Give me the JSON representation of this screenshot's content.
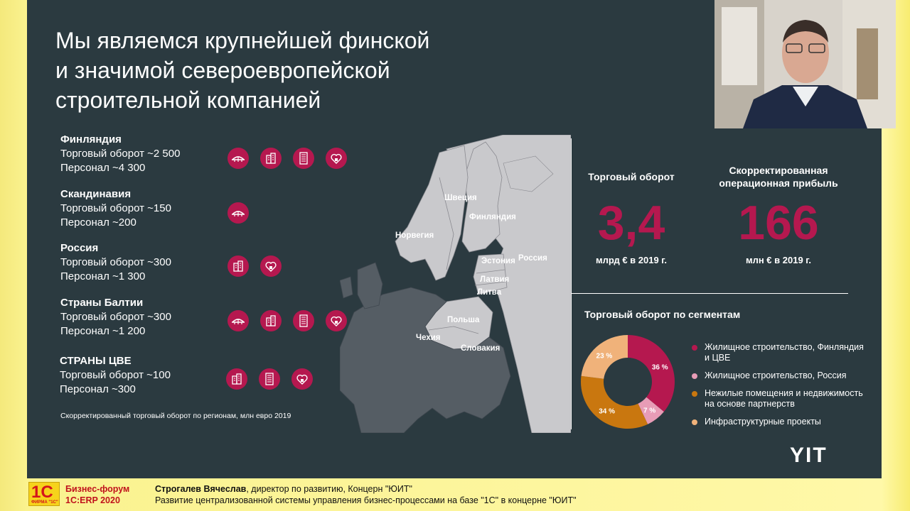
{
  "slide": {
    "title_lines": [
      "Мы являемся крупнейшей финской",
      "и значимой североевропейской",
      "строительной компанией"
    ],
    "regions": [
      {
        "name": "Финляндия",
        "turnover": "Торговый оборот ~2 500",
        "staff": "Персонал ~4 300",
        "icons": [
          "bridge-icon",
          "building-icon",
          "office-tower-icon",
          "home-heart-icon"
        ]
      },
      {
        "name": "Скандинавия",
        "turnover": "Торговый оборот ~150",
        "staff": "Персонал ~200",
        "icons": [
          "bridge-icon"
        ]
      },
      {
        "name": "Россия",
        "turnover": "Торговый оборот ~300",
        "staff": "Персонал ~1 300",
        "icons": [
          "building-icon",
          "home-heart-icon"
        ]
      },
      {
        "name": "Страны Балтии",
        "turnover": "Торговый оборот ~300",
        "staff": "Персонал ~1 200",
        "icons": [
          "bridge-icon",
          "building-icon",
          "office-tower-icon",
          "home-heart-icon"
        ]
      },
      {
        "name": "СТРАНЫ ЦВЕ",
        "turnover": "Торговый оборот ~100",
        "staff": "Персонал ~300",
        "icons": [
          "building-icon",
          "office-tower-icon",
          "home-heart-icon"
        ]
      }
    ],
    "footnote": "Скорректированный торговый оборот по регионам, млн евро 2019",
    "map_labels": {
      "sweden": "Швеция",
      "finland": "Финляндия",
      "norway": "Норвегия",
      "russia": "Россия",
      "estonia": "Эстония",
      "latvia": "Латвия",
      "lithuania": "Литва",
      "poland": "Польша",
      "czech": "Чехия",
      "slovakia": "Словакия"
    },
    "kpi": [
      {
        "label": "Торговый оборот",
        "value": "3,4",
        "unit": "млрд € в 2019 г."
      },
      {
        "label": "Скорректированная операционная прибыль",
        "value": "166",
        "unit": "млн € в 2019 г."
      }
    ],
    "segments": {
      "title": "Торговый оборот по сегментам",
      "items": [
        {
          "label": "Жилищное строительство, Финляндия и ЦВЕ",
          "value": 36,
          "pct": "36 %",
          "color": "#b5184f"
        },
        {
          "label": "Жилищное строительство, Россия",
          "value": 7,
          "pct": "7 %",
          "color": "#e79cb6"
        },
        {
          "label": "Нежилые помещения и недвижимость на основе партнерств",
          "value": 34,
          "pct": "34 %",
          "color": "#c9770f"
        },
        {
          "label": "Инфраструктурные проекты",
          "value": 23,
          "pct": "23 %",
          "color": "#f0b27a"
        }
      ]
    },
    "logo": "YIT"
  },
  "lower_third": {
    "logo_big": "1С",
    "logo_small": "ФИРМА \"1С\"",
    "event_line1": "Бизнес-форум",
    "event_line2": "1С:ERP 2020",
    "speaker_name": "Строгалев Вячеслав",
    "speaker_role": ", директор по развитию, Концерн \"ЮИТ\"",
    "talk_title": "Развитие централизованной системы управления бизнес-процессами на базе \"1С\" в концерне \"ЮИТ\""
  },
  "colors": {
    "slide_bg": "#2b3a40",
    "accent": "#b5184f",
    "lower_bg": "#fbe64a"
  }
}
